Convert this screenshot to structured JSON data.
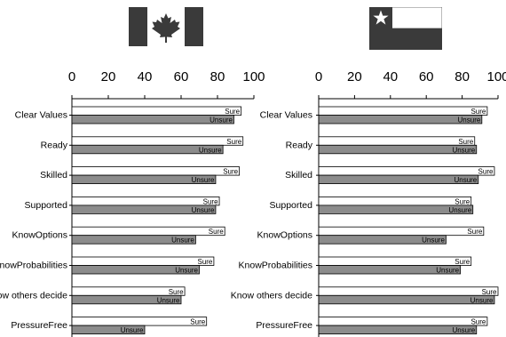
{
  "chart_data": [
    {
      "type": "bar",
      "flag": "canada-flag",
      "categories": [
        "Clear Values",
        "Ready",
        "Skilled",
        "Supported",
        "KnowOptions",
        "KnowProbabilities",
        "Know others decide",
        "PressureFree"
      ],
      "series": [
        {
          "name": "Sure",
          "color": "#ffffff",
          "values": [
            93,
            94,
            92,
            81,
            84,
            78,
            62,
            74
          ]
        },
        {
          "name": "Unsure",
          "color": "#8c8c8c",
          "values": [
            89,
            83,
            79,
            79,
            68,
            70,
            60,
            40
          ]
        }
      ],
      "xlim": [
        0,
        100
      ],
      "xticks": [
        "0",
        "20",
        "40",
        "60",
        "80",
        "100"
      ],
      "grid": false
    },
    {
      "type": "bar",
      "flag": "chile-flag",
      "categories": [
        "Clear Values",
        "Ready",
        "Skilled",
        "Supported",
        "KnowOptions",
        "KnowProbabilities",
        "Know others decide",
        "PressureFree"
      ],
      "series": [
        {
          "name": "Sure",
          "color": "#ffffff",
          "values": [
            94,
            87,
            98,
            85,
            92,
            85,
            100,
            94
          ]
        },
        {
          "name": "Unsure",
          "color": "#8c8c8c",
          "values": [
            91,
            88,
            89,
            86,
            71,
            79,
            98,
            88
          ]
        }
      ],
      "xlim": [
        0,
        100
      ],
      "xticks": [
        "0",
        "20",
        "40",
        "60",
        "80",
        "100"
      ],
      "grid": false
    }
  ]
}
